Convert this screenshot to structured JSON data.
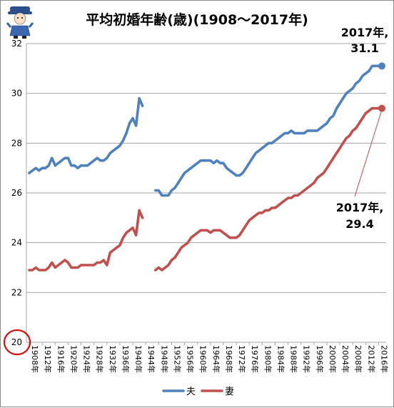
{
  "chart_data": {
    "type": "line",
    "title": "平均初婚年齢(歳)(1908～2017年)",
    "ylim": [
      20,
      32
    ],
    "yticks": [
      20,
      22,
      24,
      26,
      28,
      30,
      32
    ],
    "xlim": [
      1908,
      2017
    ],
    "xtick_labels": [
      "1908年",
      "1912年",
      "1916年",
      "1920年",
      "1924年",
      "1928年",
      "1932年",
      "1936年",
      "1940年",
      "1944年",
      "1948年",
      "1952年",
      "1956年",
      "1960年",
      "1964年",
      "1968年",
      "1972年",
      "1976年",
      "1980年",
      "1984年",
      "1988年",
      "1992年",
      "1996年",
      "2000年",
      "2004年",
      "2008年",
      "2012年",
      "2016年"
    ],
    "xtick_values": [
      1908,
      1912,
      1916,
      1920,
      1924,
      1928,
      1932,
      1936,
      1940,
      1944,
      1948,
      1952,
      1956,
      1960,
      1964,
      1968,
      1972,
      1976,
      1980,
      1984,
      1988,
      1992,
      1996,
      2000,
      2004,
      2008,
      2012,
      2016
    ],
    "grid": true,
    "legend_position": "bottom",
    "series": [
      {
        "name": "夫",
        "color": "#4f81bd",
        "segments": [
          [
            [
              1908,
              26.8
            ],
            [
              1909,
              26.9
            ],
            [
              1910,
              27.0
            ],
            [
              1911,
              26.9
            ],
            [
              1912,
              27.0
            ],
            [
              1913,
              27.0
            ],
            [
              1914,
              27.1
            ],
            [
              1915,
              27.4
            ],
            [
              1916,
              27.1
            ],
            [
              1917,
              27.2
            ],
            [
              1918,
              27.3
            ],
            [
              1919,
              27.4
            ],
            [
              1920,
              27.4
            ],
            [
              1921,
              27.1
            ],
            [
              1922,
              27.1
            ],
            [
              1923,
              27.0
            ],
            [
              1924,
              27.1
            ],
            [
              1925,
              27.1
            ],
            [
              1926,
              27.1
            ],
            [
              1927,
              27.2
            ],
            [
              1928,
              27.3
            ],
            [
              1929,
              27.4
            ],
            [
              1930,
              27.3
            ],
            [
              1931,
              27.3
            ],
            [
              1932,
              27.4
            ],
            [
              1933,
              27.6
            ],
            [
              1934,
              27.7
            ],
            [
              1935,
              27.8
            ],
            [
              1936,
              27.9
            ],
            [
              1937,
              28.1
            ],
            [
              1938,
              28.4
            ],
            [
              1939,
              28.8
            ],
            [
              1940,
              29.0
            ],
            [
              1941,
              28.7
            ],
            [
              1942,
              29.8
            ],
            [
              1943,
              29.5
            ]
          ],
          [
            [
              1947,
              26.1
            ],
            [
              1948,
              26.1
            ],
            [
              1949,
              25.9
            ],
            [
              1950,
              25.9
            ],
            [
              1951,
              25.9
            ],
            [
              1952,
              26.1
            ],
            [
              1953,
              26.2
            ],
            [
              1954,
              26.4
            ],
            [
              1955,
              26.6
            ],
            [
              1956,
              26.8
            ],
            [
              1957,
              26.9
            ],
            [
              1958,
              27.0
            ],
            [
              1959,
              27.1
            ],
            [
              1960,
              27.2
            ],
            [
              1961,
              27.3
            ],
            [
              1962,
              27.3
            ],
            [
              1963,
              27.3
            ],
            [
              1964,
              27.3
            ],
            [
              1965,
              27.2
            ],
            [
              1966,
              27.3
            ],
            [
              1967,
              27.2
            ],
            [
              1968,
              27.2
            ],
            [
              1969,
              27.0
            ],
            [
              1970,
              26.9
            ],
            [
              1971,
              26.8
            ],
            [
              1972,
              26.7
            ],
            [
              1973,
              26.7
            ],
            [
              1974,
              26.8
            ],
            [
              1975,
              27.0
            ],
            [
              1976,
              27.2
            ],
            [
              1977,
              27.4
            ],
            [
              1978,
              27.6
            ],
            [
              1979,
              27.7
            ],
            [
              1980,
              27.8
            ],
            [
              1981,
              27.9
            ],
            [
              1982,
              28.0
            ],
            [
              1983,
              28.0
            ],
            [
              1984,
              28.1
            ],
            [
              1985,
              28.2
            ],
            [
              1986,
              28.3
            ],
            [
              1987,
              28.4
            ],
            [
              1988,
              28.4
            ],
            [
              1989,
              28.5
            ],
            [
              1990,
              28.4
            ],
            [
              1991,
              28.4
            ],
            [
              1992,
              28.4
            ],
            [
              1993,
              28.4
            ],
            [
              1994,
              28.5
            ],
            [
              1995,
              28.5
            ],
            [
              1996,
              28.5
            ],
            [
              1997,
              28.5
            ],
            [
              1998,
              28.6
            ],
            [
              1999,
              28.7
            ],
            [
              2000,
              28.8
            ],
            [
              2001,
              29.0
            ],
            [
              2002,
              29.1
            ],
            [
              2003,
              29.4
            ],
            [
              2004,
              29.6
            ],
            [
              2005,
              29.8
            ],
            [
              2006,
              30.0
            ],
            [
              2007,
              30.1
            ],
            [
              2008,
              30.2
            ],
            [
              2009,
              30.4
            ],
            [
              2010,
              30.5
            ],
            [
              2011,
              30.7
            ],
            [
              2012,
              30.8
            ],
            [
              2013,
              30.9
            ],
            [
              2014,
              31.1
            ],
            [
              2015,
              31.1
            ],
            [
              2016,
              31.1
            ],
            [
              2017,
              31.1
            ]
          ]
        ]
      },
      {
        "name": "妻",
        "color": "#c0504d",
        "segments": [
          [
            [
              1908,
              22.9
            ],
            [
              1909,
              22.9
            ],
            [
              1910,
              23.0
            ],
            [
              1911,
              22.9
            ],
            [
              1912,
              22.9
            ],
            [
              1913,
              22.9
            ],
            [
              1914,
              23.0
            ],
            [
              1915,
              23.2
            ],
            [
              1916,
              23.0
            ],
            [
              1917,
              23.1
            ],
            [
              1918,
              23.2
            ],
            [
              1919,
              23.3
            ],
            [
              1920,
              23.2
            ],
            [
              1921,
              23.0
            ],
            [
              1922,
              23.0
            ],
            [
              1923,
              23.0
            ],
            [
              1924,
              23.1
            ],
            [
              1925,
              23.1
            ],
            [
              1926,
              23.1
            ],
            [
              1927,
              23.1
            ],
            [
              1928,
              23.1
            ],
            [
              1929,
              23.2
            ],
            [
              1930,
              23.2
            ],
            [
              1931,
              23.3
            ],
            [
              1932,
              23.1
            ],
            [
              1933,
              23.6
            ],
            [
              1934,
              23.7
            ],
            [
              1935,
              23.8
            ],
            [
              1936,
              23.9
            ],
            [
              1937,
              24.2
            ],
            [
              1938,
              24.4
            ],
            [
              1939,
              24.5
            ],
            [
              1940,
              24.6
            ],
            [
              1941,
              24.3
            ],
            [
              1942,
              25.3
            ],
            [
              1943,
              25.0
            ]
          ],
          [
            [
              1947,
              22.9
            ],
            [
              1948,
              23.0
            ],
            [
              1949,
              22.9
            ],
            [
              1950,
              23.0
            ],
            [
              1951,
              23.1
            ],
            [
              1952,
              23.3
            ],
            [
              1953,
              23.4
            ],
            [
              1954,
              23.6
            ],
            [
              1955,
              23.8
            ],
            [
              1956,
              23.9
            ],
            [
              1957,
              24.0
            ],
            [
              1958,
              24.2
            ],
            [
              1959,
              24.3
            ],
            [
              1960,
              24.4
            ],
            [
              1961,
              24.5
            ],
            [
              1962,
              24.5
            ],
            [
              1963,
              24.5
            ],
            [
              1964,
              24.4
            ],
            [
              1965,
              24.5
            ],
            [
              1966,
              24.5
            ],
            [
              1967,
              24.5
            ],
            [
              1968,
              24.4
            ],
            [
              1969,
              24.3
            ],
            [
              1970,
              24.2
            ],
            [
              1971,
              24.2
            ],
            [
              1972,
              24.2
            ],
            [
              1973,
              24.3
            ],
            [
              1974,
              24.5
            ],
            [
              1975,
              24.7
            ],
            [
              1976,
              24.9
            ],
            [
              1977,
              25.0
            ],
            [
              1978,
              25.1
            ],
            [
              1979,
              25.2
            ],
            [
              1980,
              25.2
            ],
            [
              1981,
              25.3
            ],
            [
              1982,
              25.3
            ],
            [
              1983,
              25.4
            ],
            [
              1984,
              25.4
            ],
            [
              1985,
              25.5
            ],
            [
              1986,
              25.6
            ],
            [
              1987,
              25.7
            ],
            [
              1988,
              25.8
            ],
            [
              1989,
              25.8
            ],
            [
              1990,
              25.9
            ],
            [
              1991,
              25.9
            ],
            [
              1992,
              26.0
            ],
            [
              1993,
              26.1
            ],
            [
              1994,
              26.2
            ],
            [
              1995,
              26.3
            ],
            [
              1996,
              26.4
            ],
            [
              1997,
              26.6
            ],
            [
              1998,
              26.7
            ],
            [
              1999,
              26.8
            ],
            [
              2000,
              27.0
            ],
            [
              2001,
              27.2
            ],
            [
              2002,
              27.4
            ],
            [
              2003,
              27.6
            ],
            [
              2004,
              27.8
            ],
            [
              2005,
              28.0
            ],
            [
              2006,
              28.2
            ],
            [
              2007,
              28.3
            ],
            [
              2008,
              28.5
            ],
            [
              2009,
              28.6
            ],
            [
              2010,
              28.8
            ],
            [
              2011,
              29.0
            ],
            [
              2012,
              29.2
            ],
            [
              2013,
              29.3
            ],
            [
              2014,
              29.4
            ],
            [
              2015,
              29.4
            ],
            [
              2016,
              29.4
            ],
            [
              2017,
              29.4
            ]
          ]
        ]
      }
    ],
    "annotations": [
      {
        "lines": [
          "2017年,",
          "31.1"
        ],
        "series": "夫"
      },
      {
        "lines": [
          "2017年,",
          "29.4"
        ],
        "series": "妻"
      }
    ]
  }
}
